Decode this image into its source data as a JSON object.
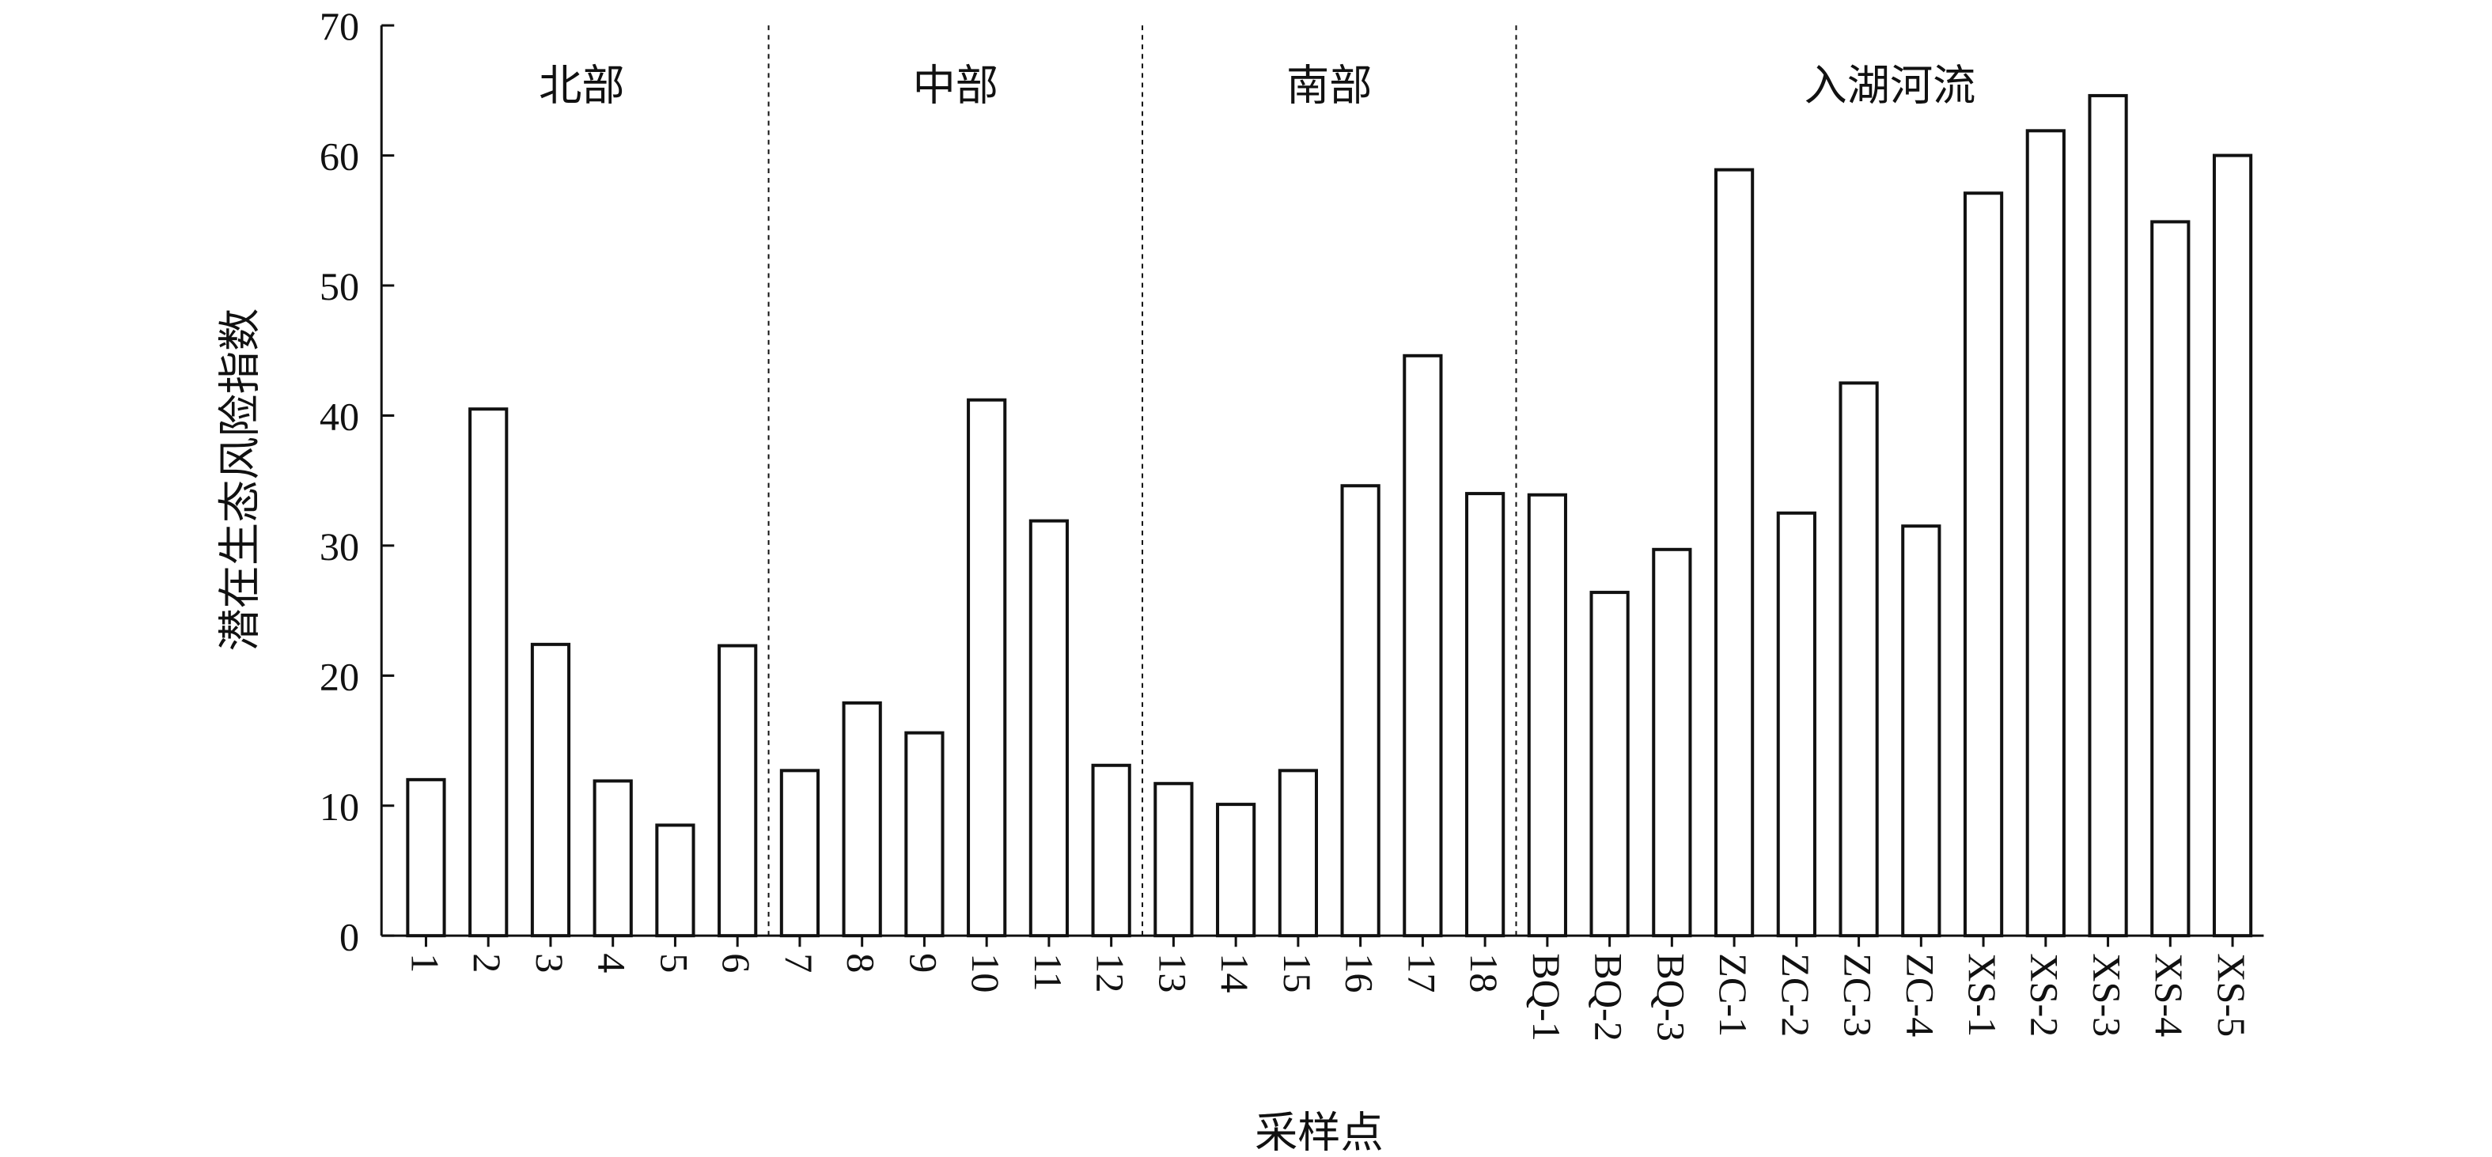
{
  "chart_data": {
    "type": "bar",
    "y_label": "潜在生态风险指数",
    "x_label": "采样点",
    "region_labels": [
      "北部",
      "中部",
      "南部",
      "入湖河流"
    ],
    "categories": [
      "1",
      "2",
      "3",
      "4",
      "5",
      "6",
      "7",
      "8",
      "9",
      "10",
      "11",
      "12",
      "13",
      "14",
      "15",
      "16",
      "17",
      "18",
      "BQ-1",
      "BQ-2",
      "BQ-3",
      "ZC-1",
      "ZC-2",
      "ZC-3",
      "ZC-4",
      "XS-1",
      "XS-2",
      "XS-3",
      "XS-4",
      "XS-5"
    ],
    "values": [
      12,
      40.5,
      22.4,
      11.9,
      8.5,
      22.3,
      12.7,
      17.9,
      15.6,
      41.2,
      31.9,
      13.1,
      11.7,
      10.1,
      12.7,
      34.6,
      44.6,
      34.0,
      33.9,
      26.4,
      29.7,
      58.9,
      32.5,
      42.5,
      31.5,
      57.1,
      61.9,
      64.6,
      54.9,
      60.0
    ],
    "color": "#ffffff",
    "ylim": [
      0,
      70
    ],
    "yticks": [
      0,
      10,
      20,
      30,
      40,
      50,
      60,
      70
    ],
    "grid": false
  }
}
